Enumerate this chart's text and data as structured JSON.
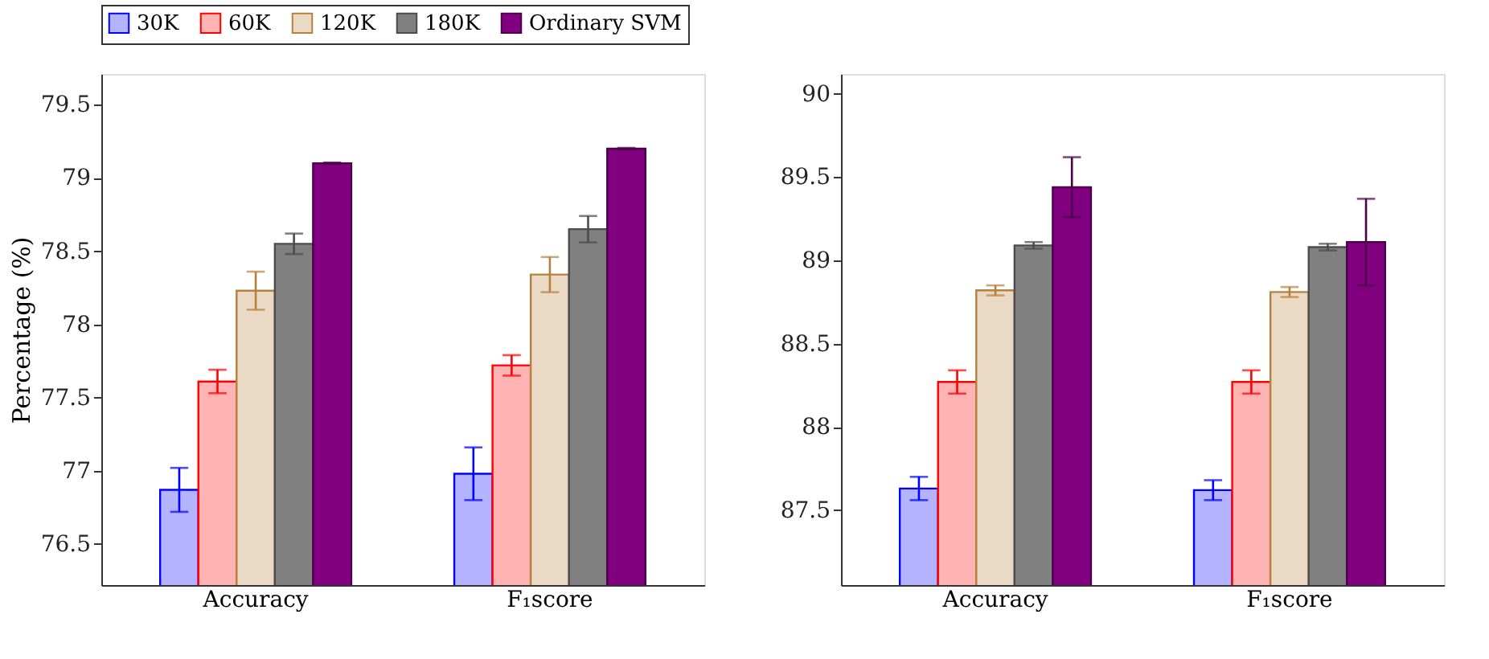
{
  "chart_data": [
    {
      "type": "bar",
      "ylabel": "Percentage (%)",
      "categories": [
        "Accuracy",
        "F₁score"
      ],
      "legend": "top",
      "grid": false,
      "ylim": [
        76.22,
        79.71
      ],
      "yticks": [
        76.5,
        77,
        77.5,
        78,
        78.5,
        79,
        79.5
      ],
      "series": [
        {
          "name": "30K",
          "color": "#b3b3ff",
          "values": [
            76.87,
            76.98
          ],
          "errors": [
            0.15,
            0.18
          ]
        },
        {
          "name": "60K",
          "color": "#ffb3b3",
          "values": [
            77.61,
            77.72
          ],
          "errors": [
            0.08,
            0.07
          ]
        },
        {
          "name": "120K",
          "color": "#ead9c5",
          "values": [
            78.23,
            78.34
          ],
          "errors": [
            0.13,
            0.12
          ]
        },
        {
          "name": "180K",
          "color": "#808080",
          "values": [
            78.55,
            78.65
          ],
          "errors": [
            0.07,
            0.09
          ]
        },
        {
          "name": "Ordinary SVM",
          "color": "#800080",
          "values": [
            79.1,
            79.2
          ],
          "errors": [
            0.005,
            0.005
          ]
        }
      ]
    },
    {
      "type": "bar",
      "categories": [
        "Accuracy",
        "F₁score"
      ],
      "legend": "top",
      "grid": false,
      "ylim": [
        87.05,
        90.12
      ],
      "yticks": [
        87.5,
        88,
        88.5,
        89,
        89.5,
        90
      ],
      "series": [
        {
          "name": "30K",
          "color": "#b3b3ff",
          "values": [
            87.63,
            87.62
          ],
          "errors": [
            0.07,
            0.06
          ]
        },
        {
          "name": "60K",
          "color": "#ffb3b3",
          "values": [
            88.27,
            88.27
          ],
          "errors": [
            0.07,
            0.07
          ]
        },
        {
          "name": "120K",
          "color": "#ead9c5",
          "values": [
            88.82,
            88.81
          ],
          "errors": [
            0.03,
            0.03
          ]
        },
        {
          "name": "180K",
          "color": "#808080",
          "values": [
            89.09,
            89.08
          ],
          "errors": [
            0.02,
            0.02
          ]
        },
        {
          "name": "Ordinary SVM",
          "color": "#800080",
          "values": [
            89.44,
            89.11
          ],
          "errors": [
            0.18,
            0.26
          ]
        }
      ]
    }
  ]
}
